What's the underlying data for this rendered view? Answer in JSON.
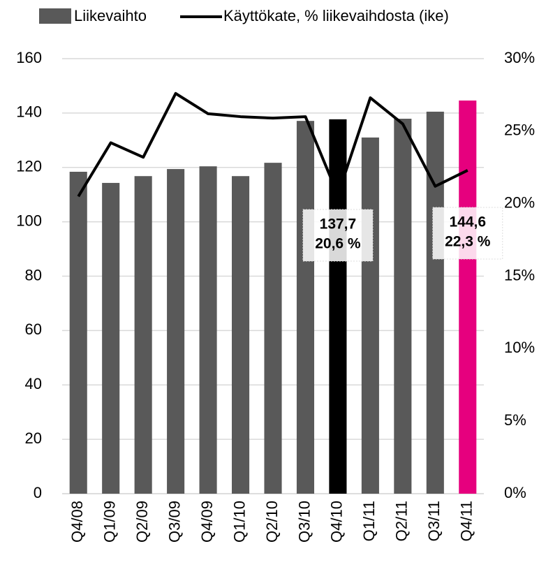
{
  "chart_data": {
    "type": "bar_line",
    "categories": [
      "Q4/08",
      "Q1/09",
      "Q2/09",
      "Q3/09",
      "Q4/09",
      "Q1/10",
      "Q2/10",
      "Q3/10",
      "Q4/10",
      "Q1/11",
      "Q2/11",
      "Q3/11",
      "Q4/11"
    ],
    "series": [
      {
        "name": "Liikevaihto",
        "type": "bar",
        "color": "#595959",
        "colors": [
          "#595959",
          "#595959",
          "#595959",
          "#595959",
          "#595959",
          "#595959",
          "#595959",
          "#595959",
          "#000000",
          "#595959",
          "#595959",
          "#595959",
          "#e6007e"
        ],
        "values": [
          118.4,
          114.3,
          116.8,
          119.4,
          120.4,
          116.8,
          121.7,
          137.1,
          137.7,
          131,
          137.9,
          140.5,
          144.6
        ],
        "value_labels": [
          null,
          null,
          null,
          null,
          null,
          null,
          null,
          null,
          "137,7",
          null,
          null,
          null,
          "144,6"
        ]
      },
      {
        "name": "Käyttökate, % liikevaihdosta (ike)",
        "type": "line",
        "axis": "y2",
        "color": "#000000",
        "values": [
          20.5,
          24.2,
          23.2,
          27.6,
          26.2,
          26.0,
          25.9,
          26.0,
          20.6,
          27.3,
          25.5,
          21.2,
          22.3
        ],
        "value_labels": [
          null,
          null,
          null,
          null,
          null,
          null,
          null,
          null,
          "20,6 %",
          null,
          null,
          null,
          "22,3 %"
        ]
      }
    ],
    "ylim": [
      0,
      160
    ],
    "yticks": [
      0,
      20,
      40,
      60,
      80,
      100,
      120,
      140,
      160
    ],
    "y2lim": [
      0,
      30
    ],
    "y2ticks": [
      {
        "value": 0,
        "label": "0%"
      },
      {
        "value": 5,
        "label": "5%"
      },
      {
        "value": 10,
        "label": "10%"
      },
      {
        "value": 15,
        "label": "15%"
      },
      {
        "value": 20,
        "label": "20%"
      },
      {
        "value": 25,
        "label": "25%"
      },
      {
        "value": 30,
        "label": "30%"
      }
    ],
    "grid": true,
    "legend": "top"
  }
}
